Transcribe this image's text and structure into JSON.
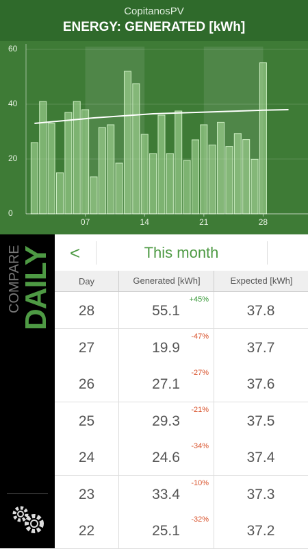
{
  "header": {
    "app": "CopitanosPV",
    "title": "ENERGY: GENERATED [kWh]"
  },
  "chart_data": {
    "type": "bar",
    "x": [
      1,
      2,
      3,
      4,
      5,
      6,
      7,
      8,
      9,
      10,
      11,
      12,
      13,
      14,
      15,
      16,
      17,
      18,
      19,
      20,
      21,
      22,
      23,
      24,
      25,
      26,
      27,
      28
    ],
    "values": [
      26,
      41,
      33,
      15,
      37,
      41,
      38,
      13.5,
      31.5,
      32.5,
      18.5,
      52,
      47.5,
      29,
      22,
      36,
      22,
      37.5,
      19.5,
      27,
      32.5,
      25.1,
      33.4,
      24.6,
      29.3,
      27.1,
      19.9,
      55.1
    ],
    "color": "#a9d99a",
    "line": {
      "x": [
        1,
        8,
        15,
        22,
        28,
        31
      ],
      "values": [
        33,
        35,
        36.5,
        37.2,
        37.8,
        38
      ],
      "color": "#ffffff"
    },
    "xlim": [
      0,
      33.3
    ],
    "xticks": [
      {
        "value": 7,
        "label": "07"
      },
      {
        "value": 14,
        "label": "14"
      },
      {
        "value": 21,
        "label": "21"
      },
      {
        "value": 28,
        "label": "28"
      }
    ],
    "ylim": [
      0,
      60
    ],
    "yticks": [
      0,
      20,
      40,
      60
    ],
    "grid": true
  },
  "sidebar": {
    "top": "COMPARE",
    "bottom": "DAILY"
  },
  "nav": {
    "back": "<",
    "title": "This month"
  },
  "table": {
    "columns": [
      "Day",
      "Generated [kWh]",
      "Expected [kWh]"
    ],
    "rows": [
      [
        "28",
        "55.1",
        "+45%",
        "37.8"
      ],
      [
        "27",
        "19.9",
        "-47%",
        "37.7"
      ],
      [
        "26",
        "27.1",
        "-27%",
        "37.6"
      ],
      [
        "25",
        "29.3",
        "-21%",
        "37.5"
      ],
      [
        "24",
        "24.6",
        "-34%",
        "37.4"
      ],
      [
        "23",
        "33.4",
        "-10%",
        "37.3"
      ],
      [
        "22",
        "25.1",
        "-32%",
        "37.2"
      ]
    ]
  }
}
